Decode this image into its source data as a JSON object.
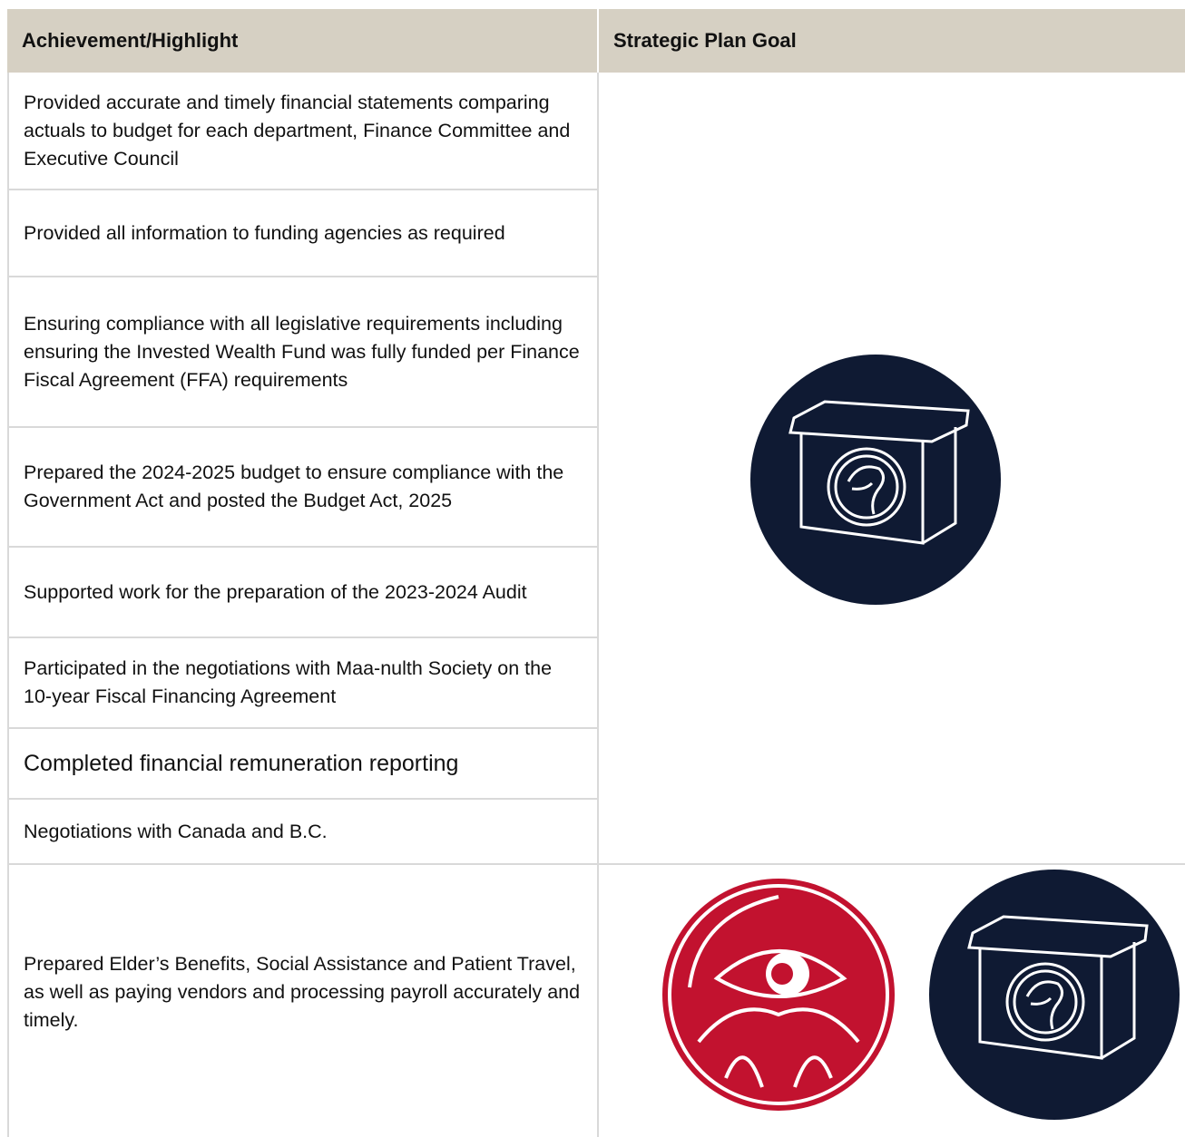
{
  "table": {
    "header": [
      "Achievement/Highlight",
      "Strategic Plan Goal"
    ],
    "rows": [
      "Provided accurate and timely financial statements comparing actuals to budget for each department, Finance Committee and Executive Council",
      "Provided all information to funding agencies as required",
      "Ensuring compliance with all legislative requirements including ensuring the Invested Wealth Fund was fully funded per Finance Fiscal Agreement (FFA) requirements",
      "Prepared the 2024-2025 budget to ensure compliance with the Government Act and posted the Budget Act, 2025",
      "Supported work for the preparation of the 2023-2024 Audit",
      "Participated in the negotiations with Maa-nulth Society on the 10-year Fiscal Financing Agreement",
      "Completed financial remuneration reporting",
      "Negotiations with Canada and B.C.",
      "Prepared Elder’s Benefits, Social Assistance and Patient Travel, as well as paying vendors and processing payroll accurately and timely."
    ]
  }
}
